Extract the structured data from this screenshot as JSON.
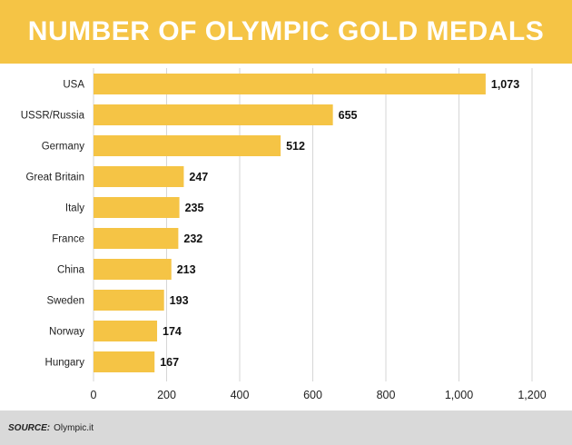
{
  "chart_data": {
    "type": "bar",
    "orientation": "horizontal",
    "title": "NUMBER OF OLYMPIC GOLD MEDALS",
    "categories": [
      "USA",
      "USSR/Russia",
      "Germany",
      "Great Britain",
      "Italy",
      "France",
      "China",
      "Sweden",
      "Norway",
      "Hungary"
    ],
    "values": [
      1073,
      655,
      512,
      247,
      235,
      232,
      213,
      193,
      174,
      167
    ],
    "value_labels": [
      "1,073",
      "655",
      "512",
      "247",
      "235",
      "232",
      "213",
      "193",
      "174",
      "167"
    ],
    "xlim": [
      0,
      1200
    ],
    "xticks": [
      0,
      200,
      400,
      600,
      800,
      1000,
      1200
    ],
    "xtick_labels": [
      "0",
      "200",
      "400",
      "600",
      "800",
      "1,000",
      "1,200"
    ],
    "grid": "vertical",
    "bar_color": "#f5c445"
  },
  "colors": {
    "accent": "#f5c445",
    "footer_bg": "#d9d9d9",
    "grid": "#d6d6d6"
  },
  "source": {
    "label": "SOURCE:",
    "value": "Olympic.it"
  }
}
